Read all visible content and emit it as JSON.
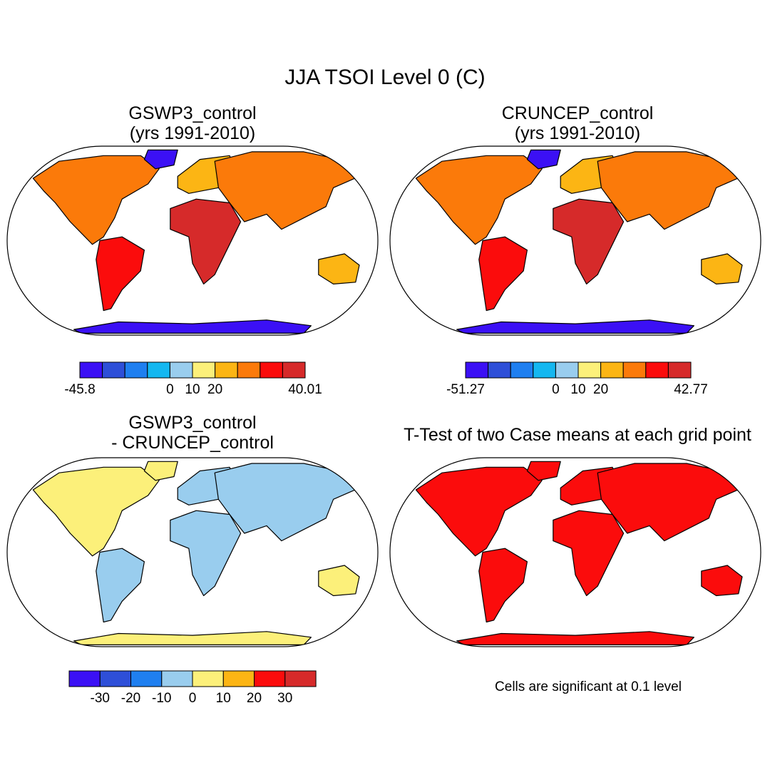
{
  "title": "JJA TSOI Level 0 (C)",
  "panels": [
    {
      "id": "gswp3",
      "title_line1": "GSWP3_control",
      "title_line2": "(yrs 1991-2010)",
      "colorbar": {
        "colors": [
          "#3b10f5",
          "#2e4fd8",
          "#1f7ff0",
          "#14b7f0",
          "#99cdee",
          "#fcf07a",
          "#fcb514",
          "#fb7a0a",
          "#fb0c0c",
          "#d62a2a"
        ],
        "labels": [
          "-45.8",
          "0",
          "10",
          "20",
          "40.01"
        ]
      }
    },
    {
      "id": "cruncep",
      "title_line1": "CRUNCEP_control",
      "title_line2": "(yrs 1991-2010)",
      "colorbar": {
        "colors": [
          "#3b10f5",
          "#2e4fd8",
          "#1f7ff0",
          "#14b7f0",
          "#99cdee",
          "#fcf07a",
          "#fcb514",
          "#fb7a0a",
          "#fb0c0c",
          "#d62a2a"
        ],
        "labels": [
          "-51.27",
          "0",
          "10",
          "20",
          "42.77"
        ]
      }
    },
    {
      "id": "diff",
      "title_line1": "GSWP3_control",
      "title_line2": "- CRUNCEP_control",
      "colorbar": {
        "colors": [
          "#3b10f5",
          "#2e4fd8",
          "#1f7ff0",
          "#99cdee",
          "#fcf07a",
          "#fcb514",
          "#fb0c0c",
          "#d62a2a"
        ],
        "labels": [
          "-30",
          "-20",
          "-10",
          "0",
          "10",
          "20",
          "30"
        ]
      }
    },
    {
      "id": "ttest",
      "title_line1": "T-Test of two Case means at each grid point",
      "note": "Cells are significant at 0.1 level",
      "colors": {
        "significant": "#fb0c0c"
      }
    }
  ]
}
